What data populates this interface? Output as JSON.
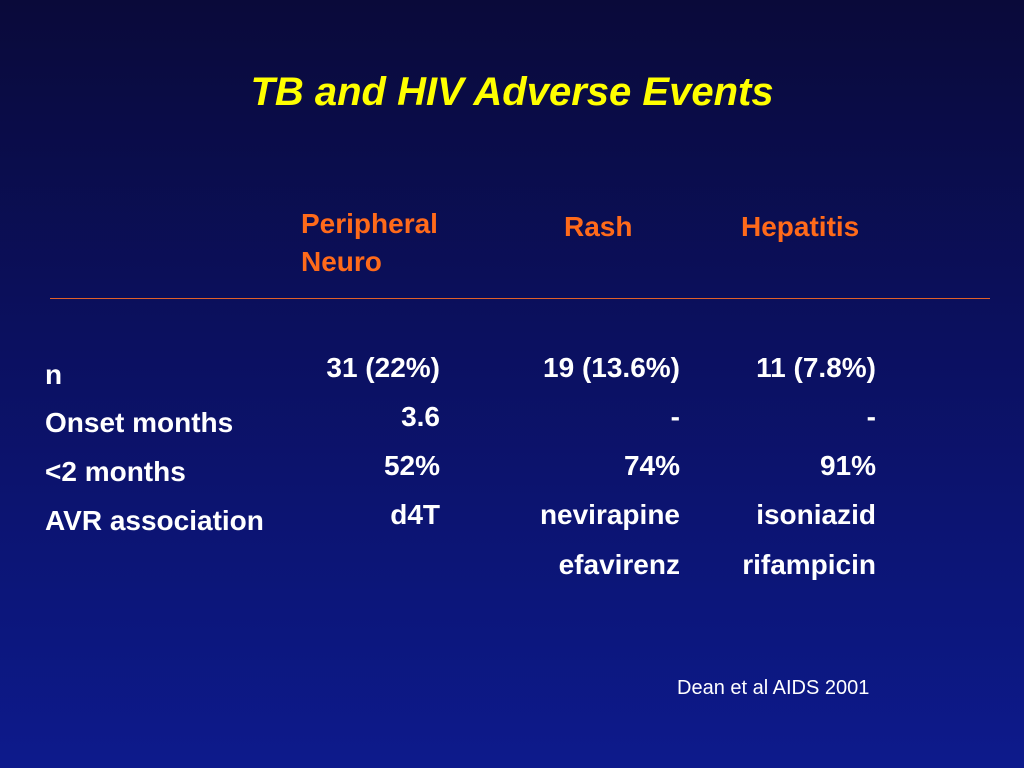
{
  "slide": {
    "title": "TB and HIV Adverse Events",
    "columns": {
      "neuro": "Peripheral\nNeuro",
      "rash": "Rash",
      "hepatitis": "Hepatitis"
    },
    "rows": {
      "n": {
        "label": "n",
        "neuro": "31 (22%)",
        "rash": "19 (13.6%)",
        "hepatitis": "11 (7.8%)"
      },
      "onset": {
        "label": "Onset months",
        "neuro": "3.6",
        "rash": "-",
        "hepatitis": "-"
      },
      "under2": {
        "label": "<2 months",
        "neuro": "52%",
        "rash": "74%",
        "hepatitis": "91%"
      },
      "avr": {
        "label": "AVR association",
        "neuro": "d4T",
        "rash": "nevirapine",
        "hepatitis": "isoniazid"
      },
      "avr2": {
        "rash": "efavirenz",
        "hepatitis": "rifampicin"
      }
    },
    "citation": "Dean et al AIDS 2001",
    "colors": {
      "title": "#ffff00",
      "header": "#ff6a1a",
      "divider": "#e0602a",
      "text": "#ffffff"
    }
  }
}
